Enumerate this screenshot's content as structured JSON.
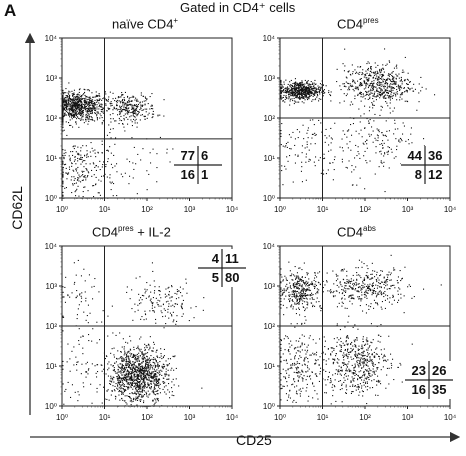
{
  "figure": {
    "panel_letter": "A",
    "gating_title": "Gated in CD4⁺ cells",
    "y_axis_label": "CD62L",
    "x_axis_label": "CD25"
  },
  "plots": [
    {
      "title_main": "naïve CD4",
      "title_sup": "+",
      "quadrants": {
        "top_left": "77",
        "top_right": "6",
        "bottom_left": "16",
        "bottom_right": "1"
      }
    },
    {
      "title_main": "CD4",
      "title_sup": "pres",
      "quadrants": {
        "top_left": "44",
        "top_right": "36",
        "bottom_left": "8",
        "bottom_right": "12"
      }
    },
    {
      "title_main": "CD4",
      "title_sup": "pres",
      "title_suffix": " + IL-2",
      "quadrants": {
        "top_left": "4",
        "top_right": "11",
        "bottom_left": "5",
        "bottom_right": "80"
      }
    },
    {
      "title_main": "CD4",
      "title_sup": "abs",
      "quadrants": {
        "top_left": "23",
        "top_right": "26",
        "bottom_left": "16",
        "bottom_right": "35"
      }
    }
  ],
  "chart_data": [
    {
      "type": "scatter",
      "title": "naïve CD4+",
      "xlabel": "CD25",
      "ylabel": "CD62L",
      "x_scale": "log",
      "y_scale": "log",
      "xlim": [
        1,
        10000
      ],
      "ylim": [
        1,
        10000
      ],
      "x_ticks": [
        "10⁰",
        "10¹",
        "10²",
        "10³",
        "10⁴"
      ],
      "y_ticks": [
        "10⁰",
        "10¹",
        "10²",
        "10³",
        "10⁴"
      ],
      "quadrant_gates": {
        "x": 10,
        "y": 30
      },
      "quadrant_percentages": {
        "upper_left": 77,
        "upper_right": 6,
        "lower_left": 16,
        "lower_right": 1
      },
      "populations": [
        {
          "x_center": 2,
          "y_center": 200,
          "x_spread": 0.35,
          "y_spread": 0.18,
          "weight": 0.6
        },
        {
          "x_center": 40,
          "y_center": 180,
          "x_spread": 0.3,
          "y_spread": 0.18,
          "weight": 0.2
        },
        {
          "x_center": 3,
          "y_center": 5,
          "x_spread": 0.4,
          "y_spread": 0.45,
          "weight": 0.17
        },
        {
          "x_center": 40,
          "y_center": 8,
          "x_spread": 0.45,
          "y_spread": 0.4,
          "weight": 0.03
        }
      ]
    },
    {
      "type": "scatter",
      "title": "CD4pres",
      "xlabel": "CD25",
      "ylabel": "CD62L",
      "x_scale": "log",
      "y_scale": "log",
      "xlim": [
        1,
        10000
      ],
      "ylim": [
        1,
        10000
      ],
      "x_ticks": [
        "10⁰",
        "10¹",
        "10²",
        "10³",
        "10⁴"
      ],
      "y_ticks": [
        "10⁰",
        "10¹",
        "10²",
        "10³",
        "10⁴"
      ],
      "quadrant_gates": {
        "x": 10,
        "y": 100
      },
      "quadrant_percentages": {
        "upper_left": 44,
        "upper_right": 36,
        "lower_left": 8,
        "lower_right": 12
      },
      "populations": [
        {
          "x_center": 3,
          "y_center": 500,
          "x_spread": 0.25,
          "y_spread": 0.12,
          "weight": 0.42
        },
        {
          "x_center": 200,
          "y_center": 700,
          "x_spread": 0.4,
          "y_spread": 0.25,
          "weight": 0.38
        },
        {
          "x_center": 4,
          "y_center": 20,
          "x_spread": 0.4,
          "y_spread": 0.45,
          "weight": 0.08
        },
        {
          "x_center": 200,
          "y_center": 25,
          "x_spread": 0.45,
          "y_spread": 0.45,
          "weight": 0.12
        }
      ]
    },
    {
      "type": "scatter",
      "title": "CD4pres + IL-2",
      "xlabel": "CD25",
      "ylabel": "CD62L",
      "x_scale": "log",
      "y_scale": "log",
      "xlim": [
        1,
        10000
      ],
      "ylim": [
        1,
        10000
      ],
      "x_ticks": [
        "10⁰",
        "10¹",
        "10²",
        "10³",
        "10⁴"
      ],
      "y_ticks": [
        "10⁰",
        "10¹",
        "10²",
        "10³",
        "10⁴"
      ],
      "quadrant_gates": {
        "x": 10,
        "y": 100
      },
      "quadrant_percentages": {
        "upper_left": 4,
        "upper_right": 11,
        "lower_left": 5,
        "lower_right": 80
      },
      "populations": [
        {
          "x_center": 3,
          "y_center": 400,
          "x_spread": 0.3,
          "y_spread": 0.4,
          "weight": 0.04
        },
        {
          "x_center": 200,
          "y_center": 400,
          "x_spread": 0.45,
          "y_spread": 0.3,
          "weight": 0.11
        },
        {
          "x_center": 3,
          "y_center": 10,
          "x_spread": 0.3,
          "y_spread": 0.4,
          "weight": 0.05
        },
        {
          "x_center": 60,
          "y_center": 6,
          "x_spread": 0.35,
          "y_spread": 0.35,
          "weight": 0.8
        }
      ]
    },
    {
      "type": "scatter",
      "title": "CD4abs",
      "xlabel": "CD25",
      "ylabel": "CD62L",
      "x_scale": "log",
      "y_scale": "log",
      "xlim": [
        1,
        10000
      ],
      "ylim": [
        1,
        10000
      ],
      "x_ticks": [
        "10⁰",
        "10¹",
        "10²",
        "10³",
        "10⁴"
      ],
      "y_ticks": [
        "10⁰",
        "10¹",
        "10²",
        "10³",
        "10⁴"
      ],
      "quadrant_gates": {
        "x": 10,
        "y": 100
      },
      "quadrant_percentages": {
        "upper_left": 23,
        "upper_right": 26,
        "lower_left": 16,
        "lower_right": 35
      },
      "populations": [
        {
          "x_center": 3,
          "y_center": 800,
          "x_spread": 0.25,
          "y_spread": 0.25,
          "weight": 0.23
        },
        {
          "x_center": 100,
          "y_center": 900,
          "x_spread": 0.5,
          "y_spread": 0.25,
          "weight": 0.26
        },
        {
          "x_center": 3,
          "y_center": 10,
          "x_spread": 0.3,
          "y_spread": 0.45,
          "weight": 0.16
        },
        {
          "x_center": 60,
          "y_center": 12,
          "x_spread": 0.4,
          "y_spread": 0.4,
          "weight": 0.35
        }
      ]
    }
  ]
}
